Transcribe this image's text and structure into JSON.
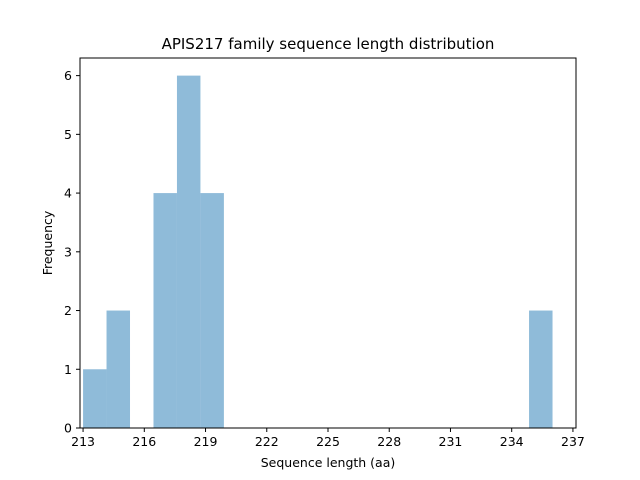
{
  "chart_data": {
    "type": "bar",
    "title": "APIS217 family sequence length distribution",
    "xlabel": "Sequence length (aa)",
    "ylabel": "Frequency",
    "xlim": [
      212.85,
      237.15
    ],
    "ylim": [
      0,
      6.3
    ],
    "x_ticks": [
      213,
      216,
      219,
      222,
      225,
      228,
      231,
      234,
      237
    ],
    "y_ticks": [
      0,
      1,
      2,
      3,
      4,
      5,
      6
    ],
    "bin_width": 1.15,
    "bins": [
      {
        "start": 213.0,
        "end": 214.15,
        "count": 1
      },
      {
        "start": 214.15,
        "end": 215.3,
        "count": 2
      },
      {
        "start": 215.3,
        "end": 216.45,
        "count": 0
      },
      {
        "start": 216.45,
        "end": 217.6,
        "count": 4
      },
      {
        "start": 217.6,
        "end": 218.75,
        "count": 6
      },
      {
        "start": 218.75,
        "end": 219.9,
        "count": 4
      },
      {
        "start": 234.85,
        "end": 236.0,
        "count": 2
      }
    ],
    "bar_color": "#8fbbd9",
    "grid": false,
    "legend": "none"
  }
}
